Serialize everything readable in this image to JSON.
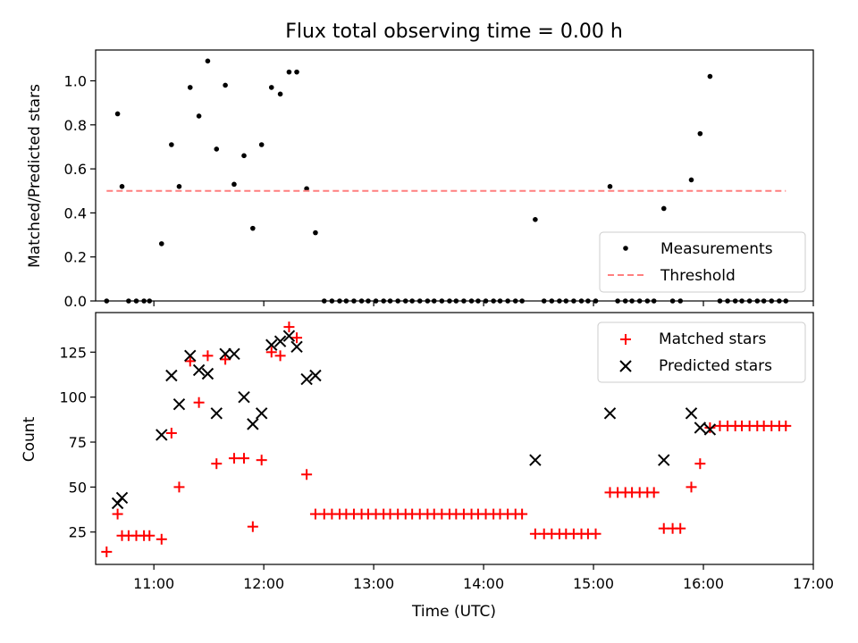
{
  "figure_title": "Flux total observing time = 0.00 h",
  "colors": {
    "marker_black": "#000000",
    "marker_red": "#ff0000",
    "threshold": "#ff7f7f"
  },
  "chart_data": [
    {
      "type": "scatter",
      "panel": "top",
      "title": "Flux total observing time = 0.00 h",
      "xlabel": "",
      "ylabel": "Matched/Predicted stars",
      "x_axis": {
        "type": "time",
        "unit": "hours UTC",
        "xlim": [
          10.47,
          17.0
        ],
        "ticks": [
          11,
          12,
          13,
          14,
          15,
          16,
          17
        ],
        "tick_labels": [
          "",
          "",
          "",
          "",
          "",
          "",
          ""
        ]
      },
      "ylim": [
        0.0,
        1.14
      ],
      "y_ticks": [
        0.0,
        0.2,
        0.4,
        0.6,
        0.8,
        1.0
      ],
      "y_tick_labels": [
        "0.0",
        "0.2",
        "0.4",
        "0.6",
        "0.8",
        "1.0"
      ],
      "grid": false,
      "legend": {
        "position": "lower-right",
        "entries": [
          "Measurements",
          "Threshold"
        ]
      },
      "series": [
        {
          "name": "Measurements",
          "marker": "dot",
          "color": "#000000",
          "points": [
            [
              10.57,
              0.0
            ],
            [
              10.67,
              0.85
            ],
            [
              10.71,
              0.52
            ],
            [
              10.77,
              0.0
            ],
            [
              10.84,
              0.0
            ],
            [
              10.91,
              0.0
            ],
            [
              10.96,
              0.0
            ],
            [
              11.07,
              0.26
            ],
            [
              11.16,
              0.71
            ],
            [
              11.23,
              0.52
            ],
            [
              11.33,
              0.97
            ],
            [
              11.41,
              0.84
            ],
            [
              11.49,
              1.09
            ],
            [
              11.57,
              0.69
            ],
            [
              11.65,
              0.98
            ],
            [
              11.73,
              0.53
            ],
            [
              11.82,
              0.66
            ],
            [
              11.9,
              0.33
            ],
            [
              11.98,
              0.71
            ],
            [
              12.07,
              0.97
            ],
            [
              12.15,
              0.94
            ],
            [
              12.23,
              1.04
            ],
            [
              12.3,
              1.04
            ],
            [
              12.39,
              0.51
            ],
            [
              12.47,
              0.31
            ],
            [
              12.55,
              0.0
            ],
            [
              12.62,
              0.0
            ],
            [
              12.69,
              0.0
            ],
            [
              12.75,
              0.0
            ],
            [
              12.82,
              0.0
            ],
            [
              12.89,
              0.0
            ],
            [
              12.95,
              0.0
            ],
            [
              13.02,
              0.0
            ],
            [
              13.09,
              0.0
            ],
            [
              13.15,
              0.0
            ],
            [
              13.22,
              0.0
            ],
            [
              13.29,
              0.0
            ],
            [
              13.35,
              0.0
            ],
            [
              13.42,
              0.0
            ],
            [
              13.49,
              0.0
            ],
            [
              13.55,
              0.0
            ],
            [
              13.62,
              0.0
            ],
            [
              13.69,
              0.0
            ],
            [
              13.75,
              0.0
            ],
            [
              13.82,
              0.0
            ],
            [
              13.89,
              0.0
            ],
            [
              13.95,
              0.0
            ],
            [
              14.02,
              0.0
            ],
            [
              14.09,
              0.0
            ],
            [
              14.15,
              0.0
            ],
            [
              14.22,
              0.0
            ],
            [
              14.29,
              0.0
            ],
            [
              14.35,
              0.0
            ],
            [
              14.47,
              0.37
            ],
            [
              14.55,
              0.0
            ],
            [
              14.62,
              0.0
            ],
            [
              14.69,
              0.0
            ],
            [
              14.75,
              0.0
            ],
            [
              14.82,
              0.0
            ],
            [
              14.89,
              0.0
            ],
            [
              14.95,
              0.0
            ],
            [
              15.02,
              0.0
            ],
            [
              15.15,
              0.52
            ],
            [
              15.22,
              0.0
            ],
            [
              15.29,
              0.0
            ],
            [
              15.35,
              0.0
            ],
            [
              15.42,
              0.0
            ],
            [
              15.49,
              0.0
            ],
            [
              15.55,
              0.0
            ],
            [
              15.64,
              0.42
            ],
            [
              15.72,
              0.0
            ],
            [
              15.79,
              0.0
            ],
            [
              15.89,
              0.55
            ],
            [
              15.97,
              0.76
            ],
            [
              16.06,
              1.02
            ],
            [
              16.15,
              0.0
            ],
            [
              16.22,
              0.0
            ],
            [
              16.29,
              0.0
            ],
            [
              16.35,
              0.0
            ],
            [
              16.42,
              0.0
            ],
            [
              16.49,
              0.0
            ],
            [
              16.55,
              0.0
            ],
            [
              16.62,
              0.0
            ],
            [
              16.69,
              0.0
            ],
            [
              16.75,
              0.0
            ]
          ]
        },
        {
          "name": "Threshold",
          "style": "dashed",
          "color": "#ff7f7f",
          "points": [
            [
              10.57,
              0.5
            ],
            [
              16.75,
              0.5
            ]
          ]
        }
      ]
    },
    {
      "type": "scatter",
      "panel": "bottom",
      "xlabel": "Time (UTC)",
      "ylabel": "Count",
      "x_axis": {
        "type": "time",
        "unit": "hours UTC",
        "xlim": [
          10.47,
          17.0
        ],
        "ticks": [
          11,
          12,
          13,
          14,
          15,
          16,
          17
        ],
        "tick_labels": [
          "11:00",
          "12:00",
          "13:00",
          "14:00",
          "15:00",
          "16:00",
          "17:00"
        ]
      },
      "ylim": [
        7,
        147
      ],
      "y_ticks": [
        25,
        50,
        75,
        100,
        125
      ],
      "y_tick_labels": [
        "25",
        "50",
        "75",
        "100",
        "125"
      ],
      "grid": false,
      "legend": {
        "position": "top-right",
        "entries": [
          "Matched stars",
          "Predicted stars"
        ]
      },
      "series": [
        {
          "name": "Matched stars",
          "marker": "plus",
          "color": "#ff0000",
          "points": [
            [
              10.57,
              14
            ],
            [
              10.67,
              35
            ],
            [
              10.71,
              23
            ],
            [
              10.77,
              23
            ],
            [
              10.84,
              23
            ],
            [
              10.91,
              23
            ],
            [
              10.96,
              23
            ],
            [
              11.07,
              21
            ],
            [
              11.16,
              80
            ],
            [
              11.23,
              50
            ],
            [
              11.33,
              120
            ],
            [
              11.41,
              97
            ],
            [
              11.49,
              123
            ],
            [
              11.57,
              63
            ],
            [
              11.65,
              121
            ],
            [
              11.73,
              66
            ],
            [
              11.82,
              66
            ],
            [
              11.9,
              28
            ],
            [
              11.98,
              65
            ],
            [
              12.07,
              125
            ],
            [
              12.15,
              123
            ],
            [
              12.23,
              139
            ],
            [
              12.3,
              133
            ],
            [
              12.39,
              57
            ],
            [
              12.47,
              35
            ],
            [
              12.55,
              35
            ],
            [
              12.62,
              35
            ],
            [
              12.69,
              35
            ],
            [
              12.75,
              35
            ],
            [
              12.82,
              35
            ],
            [
              12.89,
              35
            ],
            [
              12.95,
              35
            ],
            [
              13.02,
              35
            ],
            [
              13.09,
              35
            ],
            [
              13.15,
              35
            ],
            [
              13.22,
              35
            ],
            [
              13.29,
              35
            ],
            [
              13.35,
              35
            ],
            [
              13.42,
              35
            ],
            [
              13.49,
              35
            ],
            [
              13.55,
              35
            ],
            [
              13.62,
              35
            ],
            [
              13.69,
              35
            ],
            [
              13.75,
              35
            ],
            [
              13.82,
              35
            ],
            [
              13.89,
              35
            ],
            [
              13.95,
              35
            ],
            [
              14.02,
              35
            ],
            [
              14.09,
              35
            ],
            [
              14.15,
              35
            ],
            [
              14.22,
              35
            ],
            [
              14.29,
              35
            ],
            [
              14.35,
              35
            ],
            [
              14.47,
              24
            ],
            [
              14.55,
              24
            ],
            [
              14.62,
              24
            ],
            [
              14.69,
              24
            ],
            [
              14.75,
              24
            ],
            [
              14.82,
              24
            ],
            [
              14.89,
              24
            ],
            [
              14.95,
              24
            ],
            [
              15.02,
              24
            ],
            [
              15.15,
              47
            ],
            [
              15.22,
              47
            ],
            [
              15.29,
              47
            ],
            [
              15.35,
              47
            ],
            [
              15.42,
              47
            ],
            [
              15.49,
              47
            ],
            [
              15.55,
              47
            ],
            [
              15.64,
              27
            ],
            [
              15.72,
              27
            ],
            [
              15.79,
              27
            ],
            [
              15.89,
              50
            ],
            [
              15.97,
              63
            ],
            [
              16.06,
              83
            ],
            [
              16.15,
              84
            ],
            [
              16.22,
              84
            ],
            [
              16.29,
              84
            ],
            [
              16.35,
              84
            ],
            [
              16.42,
              84
            ],
            [
              16.49,
              84
            ],
            [
              16.55,
              84
            ],
            [
              16.62,
              84
            ],
            [
              16.69,
              84
            ],
            [
              16.75,
              84
            ]
          ]
        },
        {
          "name": "Predicted stars",
          "marker": "x",
          "color": "#000000",
          "points": [
            [
              10.67,
              41
            ],
            [
              10.71,
              44
            ],
            [
              11.07,
              79
            ],
            [
              11.16,
              112
            ],
            [
              11.23,
              96
            ],
            [
              11.33,
              123
            ],
            [
              11.41,
              115
            ],
            [
              11.49,
              113
            ],
            [
              11.57,
              91
            ],
            [
              11.65,
              124
            ],
            [
              11.73,
              124
            ],
            [
              11.82,
              100
            ],
            [
              11.9,
              85
            ],
            [
              11.98,
              91
            ],
            [
              12.07,
              129
            ],
            [
              12.15,
              131
            ],
            [
              12.23,
              134
            ],
            [
              12.3,
              128
            ],
            [
              12.39,
              110
            ],
            [
              12.47,
              112
            ],
            [
              14.47,
              65
            ],
            [
              15.15,
              91
            ],
            [
              15.64,
              65
            ],
            [
              15.89,
              91
            ],
            [
              15.97,
              83
            ],
            [
              16.06,
              82
            ]
          ]
        }
      ]
    }
  ]
}
